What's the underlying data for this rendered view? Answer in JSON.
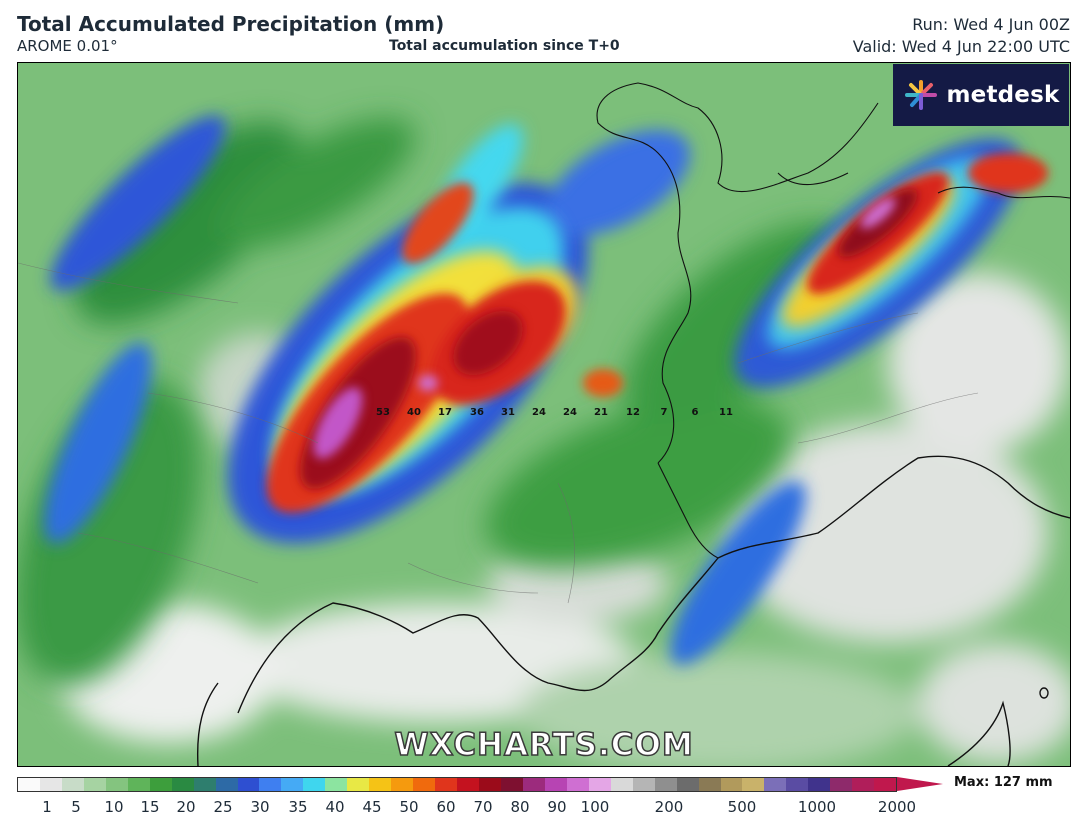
{
  "header": {
    "title": "Total Accumulated Precipitation (mm)",
    "model": "AROME 0.01°",
    "subtitle": "Total accumulation since T+0",
    "run": "Run: Wed 4 Jun 00Z",
    "valid": "Valid: Wed 4 Jun 22:00 UTC"
  },
  "brand": {
    "name": "metdesk",
    "icon": "metdesk-starburst-logo"
  },
  "watermark": "WXCHARTS.COM",
  "point_values": [
    "53",
    "40",
    "17",
    "36",
    "31",
    "24",
    "24",
    "21",
    "12",
    "7",
    "6",
    "11"
  ],
  "legend": {
    "ticks": [
      "1",
      "5",
      "10",
      "15",
      "20",
      "25",
      "30",
      "35",
      "40",
      "45",
      "50",
      "60",
      "70",
      "80",
      "90",
      "100",
      "200",
      "500",
      "1000",
      "2000"
    ],
    "max_label": "Max: 127 mm",
    "colors": [
      "#fafafa",
      "#e6e6e6",
      "#c8dcc8",
      "#a6d3a2",
      "#84c47f",
      "#5fb45a",
      "#3d9e3c",
      "#2a8a42",
      "#2e7e6e",
      "#2d6aa6",
      "#2e4fd1",
      "#3f7ff0",
      "#45aaf5",
      "#3fd6ee",
      "#8ce4a0",
      "#e8e845",
      "#f5c316",
      "#f59a0e",
      "#f06a0d",
      "#e0351c",
      "#c4121f",
      "#9b0b1a",
      "#7e1030",
      "#9c2b7d",
      "#b744b3",
      "#cf6fd2",
      "#e4a6e6",
      "#d9d9d9",
      "#b5b5b5",
      "#8f8f8f",
      "#6c6c6c",
      "#8a7a55",
      "#b19a5c",
      "#c9b26a",
      "#7b6fb8",
      "#5a4ca3",
      "#40338c",
      "#8e2a6b",
      "#b01e5a",
      "#c0184d"
    ]
  }
}
